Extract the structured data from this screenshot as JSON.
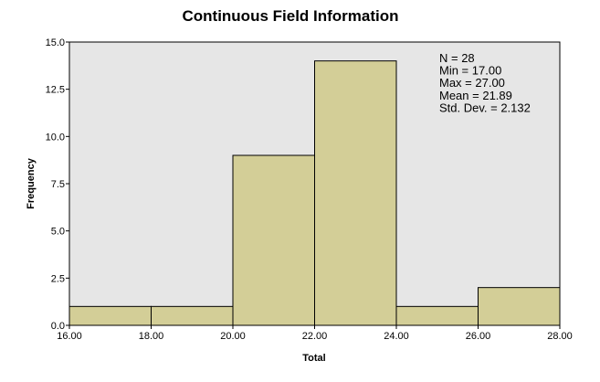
{
  "chart_data": {
    "type": "bar",
    "title": "Continuous Field Information",
    "xlabel": "Total",
    "ylabel": "Frequency",
    "bins": [
      {
        "start": 16,
        "end": 18,
        "value": 1
      },
      {
        "start": 18,
        "end": 20,
        "value": 1
      },
      {
        "start": 20,
        "end": 22,
        "value": 9
      },
      {
        "start": 22,
        "end": 24,
        "value": 14
      },
      {
        "start": 24,
        "end": 26,
        "value": 1
      },
      {
        "start": 26,
        "end": 28,
        "value": 2
      }
    ],
    "xlim": [
      16,
      28
    ],
    "ylim": [
      0,
      15
    ],
    "x_ticks": [
      "16.00",
      "18.00",
      "20.00",
      "22.00",
      "24.00",
      "26.00",
      "28.00"
    ],
    "y_ticks": [
      "0.0",
      "2.5",
      "5.0",
      "7.5",
      "10.0",
      "12.5",
      "15.0"
    ],
    "stats": [
      "N = 28",
      "Min = 17.00",
      "Max = 27.00",
      "Mean = 21.89",
      "Std. Dev. = 2.132"
    ],
    "grid": false,
    "colors": {
      "bar_fill": "#d3ce97",
      "bar_stroke": "#000000",
      "plot_background": "#e6e6e6"
    }
  }
}
